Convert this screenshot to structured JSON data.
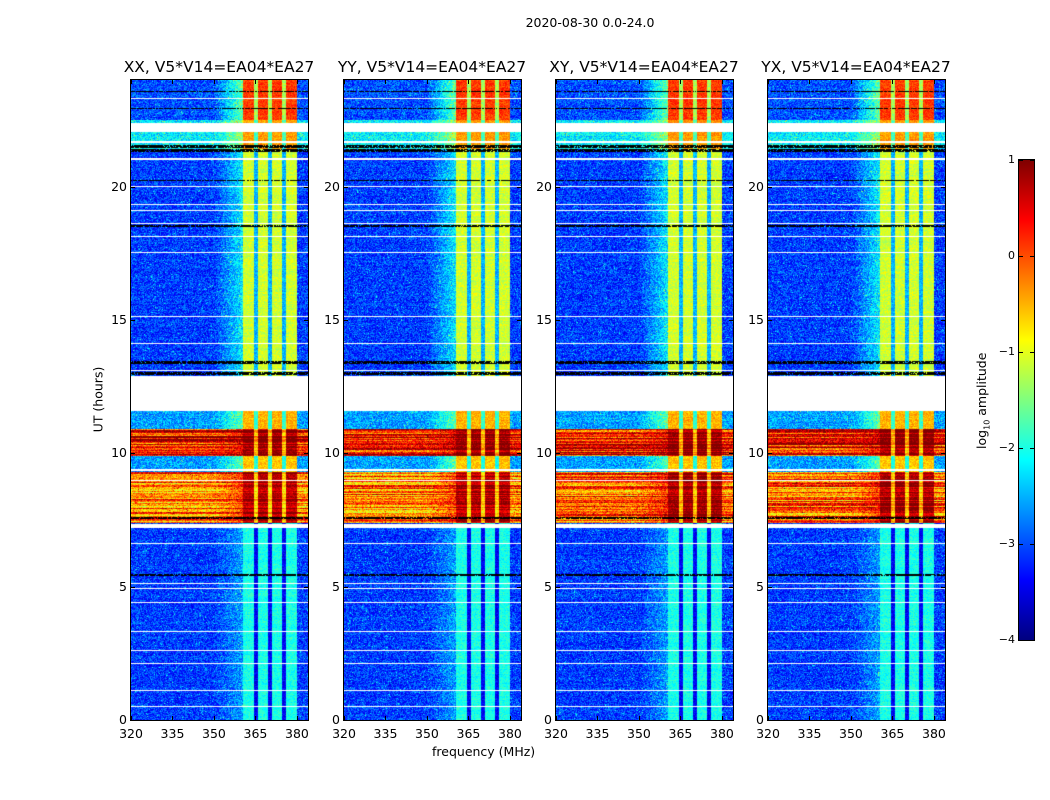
{
  "chart_data": {
    "type": "heatmap",
    "title": "2020-08-30 0.0-24.0",
    "xlabel": "frequency (MHz)",
    "ylabel": "UT (hours)",
    "xlim": [
      320,
      384
    ],
    "ylim": [
      0,
      24
    ],
    "xticks": [
      "320",
      "335",
      "350",
      "365",
      "380"
    ],
    "xtick_values": [
      320,
      335,
      350,
      365,
      380
    ],
    "yticks": [
      "0",
      "5",
      "10",
      "15",
      "20"
    ],
    "ytick_values": [
      0,
      5,
      10,
      15,
      20
    ],
    "colormap": "jet",
    "colorbar": {
      "label_main": "log",
      "label_sub": "10",
      "label_rest": " amplitude",
      "range": [
        -4,
        1
      ],
      "ticks": [
        "1",
        "0",
        "−1",
        "−2",
        "−3",
        "−4"
      ],
      "tick_values": [
        1,
        0,
        -1,
        -2,
        -3,
        -4
      ]
    },
    "panels": [
      {
        "title": "XX, V5*V14=EA04*EA27",
        "seed": 11
      },
      {
        "title": "YY, V5*V14=EA04*EA27",
        "seed": 23
      },
      {
        "title": "XY, V5*V14=EA04*EA27",
        "seed": 37
      },
      {
        "title": "YX, V5*V14=EA04*EA27",
        "seed": 51
      }
    ],
    "rfi_band_mhz": [
      360.5,
      380.2
    ],
    "rfi_subband_gaps_mhz": [
      365.2,
      370.3,
      375.3
    ],
    "time_segments": [
      {
        "from": 0.0,
        "to": 7.3,
        "background": -3.1,
        "band": -2.0
      },
      {
        "from": 7.4,
        "to": 9.3,
        "background": -0.4,
        "band": 0.7,
        "striped": true
      },
      {
        "from": 9.3,
        "to": 9.9,
        "background": -2.6,
        "band": -0.6
      },
      {
        "from": 9.9,
        "to": 10.9,
        "background": 0.1,
        "band": 0.8,
        "striped": true
      },
      {
        "from": 10.9,
        "to": 11.6,
        "background": -2.6,
        "band": -0.5
      },
      {
        "from": 12.9,
        "to": 21.4,
        "background": -3.1,
        "band": -1.1
      },
      {
        "from": 21.4,
        "to": 22.5,
        "background": -2.2,
        "band": -0.4
      },
      {
        "from": 22.5,
        "to": 24.0,
        "background": -3.0,
        "band": 0.1
      }
    ],
    "flagged_hours": [
      [
        7.2,
        7.35
      ],
      [
        11.6,
        12.9
      ],
      [
        22.05,
        22.4
      ],
      [
        21.62,
        21.7
      ],
      [
        21.0,
        21.06
      ],
      [
        0.5,
        0.54
      ],
      [
        1.1,
        1.14
      ],
      [
        2.1,
        2.14
      ],
      [
        2.6,
        2.64
      ],
      [
        3.3,
        3.34
      ],
      [
        4.4,
        4.44
      ],
      [
        4.9,
        4.94
      ],
      [
        5.1,
        5.14
      ],
      [
        6.6,
        6.64
      ],
      [
        8.95,
        9.0
      ],
      [
        9.35,
        9.4
      ],
      [
        13.1,
        13.14
      ],
      [
        14.1,
        14.14
      ],
      [
        15.1,
        15.14
      ],
      [
        17.5,
        17.54
      ],
      [
        18.1,
        18.14
      ],
      [
        18.6,
        18.64
      ],
      [
        19.1,
        19.14
      ],
      [
        19.3,
        19.34
      ],
      [
        20.0,
        20.04
      ],
      [
        23.3,
        23.34
      ]
    ],
    "dropout_hours": [
      [
        12.95,
        13.05
      ],
      [
        13.35,
        13.45
      ],
      [
        21.3,
        21.4
      ],
      [
        21.45,
        21.55
      ],
      [
        5.4,
        5.46
      ],
      [
        7.55,
        7.6
      ],
      [
        18.5,
        18.55
      ],
      [
        20.2,
        20.25
      ],
      [
        23.55,
        23.6
      ],
      [
        22.9,
        22.95
      ]
    ]
  }
}
